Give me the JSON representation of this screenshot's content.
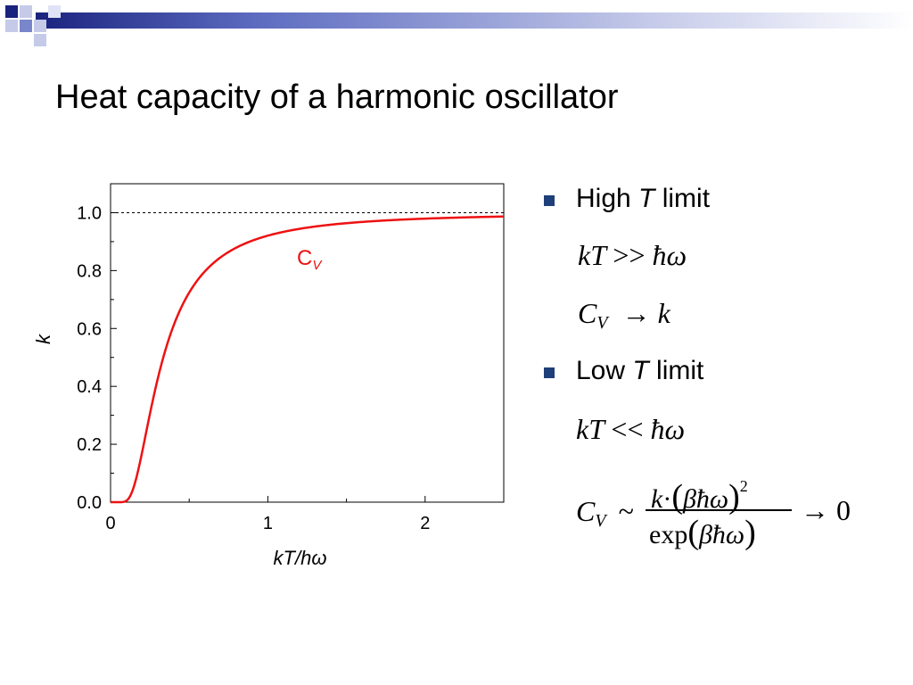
{
  "slide": {
    "title": "Heat capacity of a harmonic oscillator"
  },
  "bullets": [
    {
      "label_pre": "High ",
      "label_var": "T",
      "label_post": " limit",
      "condition": {
        "lhs": "kT",
        "op": ">>",
        "rhs": "ħω"
      },
      "result": {
        "lhs_main": "C",
        "lhs_sub": "V",
        "op": "→",
        "rhs": "k"
      }
    },
    {
      "label_pre": "Low ",
      "label_var": "T",
      "label_post": " limit",
      "condition": {
        "lhs": "kT",
        "op": "<<",
        "rhs": "ħω"
      },
      "result": {
        "lhs_main": "C",
        "lhs_sub": "V",
        "tilde": "~",
        "numerator_k": "k",
        "numerator_dot": "·",
        "numerator_arg": "βħω",
        "numerator_exp": "2",
        "denominator_fn": "exp",
        "denominator_arg": "βħω",
        "arrow": "→",
        "limit": "0"
      }
    }
  ],
  "colors": {
    "curve": "#ee1111",
    "bullet": "#1f3f7a",
    "band_dark": "#1a237e",
    "band_light": "#c5cae9"
  },
  "chart_data": {
    "type": "line",
    "xlabel": "kT/hω",
    "ylabel": "k",
    "xlim": [
      0,
      2.5
    ],
    "ylim": [
      0,
      1.1
    ],
    "xticks": [
      "0",
      "1",
      "2"
    ],
    "yticks": [
      "0.0",
      "0.2",
      "0.4",
      "0.6",
      "0.8",
      "1.0"
    ],
    "grid": false,
    "reference_line": {
      "y": 1.0,
      "style": "dashed"
    },
    "series": [
      {
        "name": "C",
        "name_sub": "V",
        "function": "einstein_heat_capacity",
        "x": [
          0.05,
          0.1,
          0.15,
          0.2,
          0.25,
          0.3,
          0.4,
          0.5,
          0.6,
          0.8,
          1.0,
          1.5,
          2.0,
          2.5
        ],
        "y": [
          0.0,
          0.005,
          0.06,
          0.17,
          0.3,
          0.42,
          0.59,
          0.72,
          0.79,
          0.88,
          0.92,
          0.96,
          0.98,
          0.987
        ]
      }
    ]
  }
}
